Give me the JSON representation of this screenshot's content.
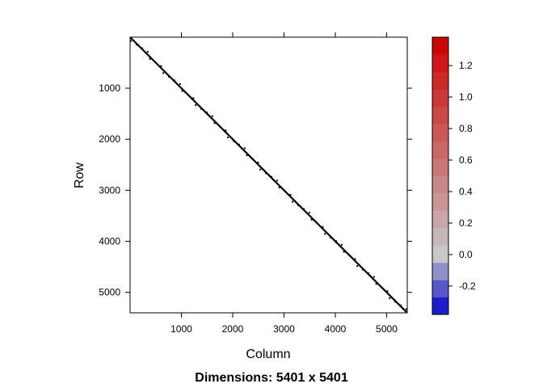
{
  "chart_data": {
    "type": "heatmap",
    "subtype": "sparse-matrix-image",
    "title": "Dimensions: 5401 x 5401",
    "xlabel": "Column",
    "ylabel": "Row",
    "matrix": {
      "rows": 5401,
      "cols": 5401,
      "pattern": "banded-diagonal",
      "band_color": "#000000"
    },
    "x": {
      "range": [
        1,
        5401
      ],
      "ticks": [
        1000,
        2000,
        3000,
        4000,
        5000
      ]
    },
    "y": {
      "range": [
        1,
        5401
      ],
      "reversed": true,
      "ticks": [
        1000,
        2000,
        3000,
        4000,
        5000
      ]
    },
    "colorkey": {
      "position": "right",
      "range": [
        -0.38,
        1.38
      ],
      "ticks": [
        -0.2,
        0.0,
        0.2,
        0.4,
        0.6,
        0.8,
        1.0,
        1.2
      ],
      "tick_labels": [
        "-0.2",
        "0.0",
        "0.2",
        "0.4",
        "0.6",
        "0.8",
        "1.0",
        "1.2"
      ],
      "low_color": "#0000cc",
      "mid_color": "#c8c8c8",
      "high_color": "#cc0000",
      "zero_value": 0.0,
      "bins": [
        -0.38,
        -0.27,
        -0.16,
        -0.05,
        0.06,
        0.17,
        0.28,
        0.39,
        0.5,
        0.61,
        0.72,
        0.83,
        0.94,
        1.05,
        1.16,
        1.27,
        1.38
      ]
    }
  }
}
